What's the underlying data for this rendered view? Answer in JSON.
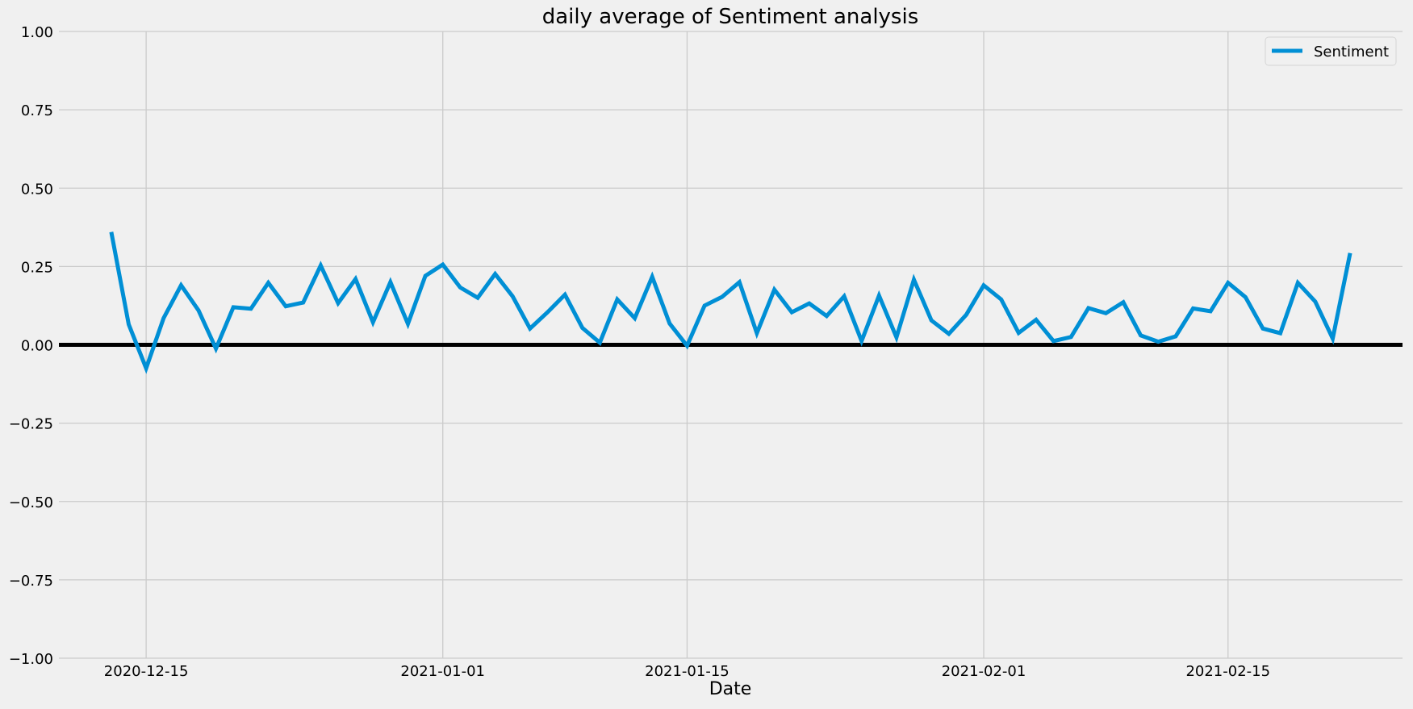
{
  "chart_data": {
    "type": "line",
    "title": "daily average of Sentiment analysis",
    "xlabel": "Date",
    "ylabel": "",
    "ylim": [
      -1.0,
      1.0
    ],
    "xlim": [
      "2020-12-10",
      "2021-02-25"
    ],
    "grid": true,
    "legend_position": "top-right",
    "x_ticks": [
      "2020-12-15",
      "2021-01-01",
      "2021-01-15",
      "2021-02-01",
      "2021-02-15"
    ],
    "y_ticks": [
      "1.00",
      "0.75",
      "0.50",
      "0.25",
      "0.00",
      "−0.25",
      "−0.50",
      "−0.75",
      "−1.00"
    ],
    "y_tick_values": [
      1.0,
      0.75,
      0.5,
      0.25,
      0.0,
      -0.25,
      -0.5,
      -0.75,
      -1.0
    ],
    "reference_line": {
      "y": 0.0,
      "color": "#000000"
    },
    "series": [
      {
        "name": "Sentiment",
        "color": "#008fd5",
        "x": [
          "2020-12-13",
          "2020-12-14",
          "2020-12-15",
          "2020-12-16",
          "2020-12-17",
          "2020-12-18",
          "2020-12-19",
          "2020-12-20",
          "2020-12-21",
          "2020-12-22",
          "2020-12-23",
          "2020-12-24",
          "2020-12-25",
          "2020-12-26",
          "2020-12-27",
          "2020-12-28",
          "2020-12-29",
          "2020-12-30",
          "2020-12-31",
          "2021-01-01",
          "2021-01-02",
          "2021-01-03",
          "2021-01-04",
          "2021-01-05",
          "2021-01-06",
          "2021-01-07",
          "2021-01-08",
          "2021-01-09",
          "2021-01-10",
          "2021-01-11",
          "2021-01-12",
          "2021-01-13",
          "2021-01-14",
          "2021-01-15",
          "2021-01-16",
          "2021-01-17",
          "2021-01-18",
          "2021-01-19",
          "2021-01-20",
          "2021-01-21",
          "2021-01-22",
          "2021-01-23",
          "2021-01-24",
          "2021-01-25",
          "2021-01-26",
          "2021-01-27",
          "2021-01-28",
          "2021-01-29",
          "2021-01-30",
          "2021-01-31",
          "2021-02-01",
          "2021-02-02",
          "2021-02-03",
          "2021-02-04",
          "2021-02-05",
          "2021-02-06",
          "2021-02-07",
          "2021-02-08",
          "2021-02-09",
          "2021-02-10",
          "2021-02-11",
          "2021-02-12",
          "2021-02-13",
          "2021-02-14",
          "2021-02-15",
          "2021-02-16",
          "2021-02-17",
          "2021-02-18",
          "2021-02-19",
          "2021-02-20",
          "2021-02-21",
          "2021-02-22"
        ],
        "values": [
          0.36,
          0.065,
          -0.075,
          0.085,
          0.19,
          0.11,
          -0.012,
          0.12,
          0.115,
          0.198,
          0.123,
          0.135,
          0.253,
          0.133,
          0.21,
          0.072,
          0.2,
          0.067,
          0.22,
          0.256,
          0.183,
          0.15,
          0.226,
          0.155,
          0.052,
          0.104,
          0.16,
          0.054,
          0.007,
          0.145,
          0.085,
          0.217,
          0.068,
          -0.003,
          0.125,
          0.153,
          0.2,
          0.037,
          0.176,
          0.104,
          0.132,
          0.092,
          0.155,
          0.012,
          0.157,
          0.024,
          0.208,
          0.078,
          0.035,
          0.096,
          0.19,
          0.145,
          0.038,
          0.08,
          0.012,
          0.025,
          0.117,
          0.101,
          0.136,
          0.03,
          0.01,
          0.027,
          0.116,
          0.107,
          0.198,
          0.152,
          0.052,
          0.037,
          0.198,
          0.138,
          0.02,
          0.293
        ]
      }
    ]
  }
}
